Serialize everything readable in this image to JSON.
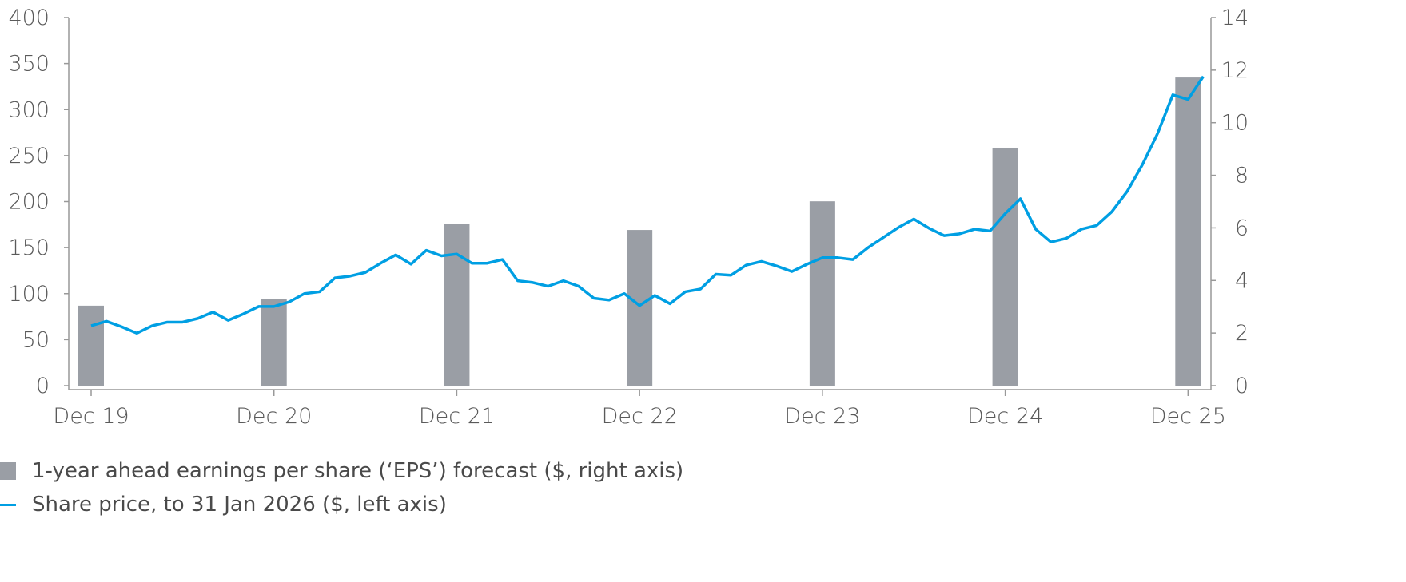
{
  "chart_data": {
    "type": "bar+line",
    "colors": {
      "bars": "#9a9ea5",
      "line": "#009fe3"
    },
    "left_axis": {
      "ylim": [
        0,
        400
      ],
      "ticks": [
        0,
        50,
        100,
        150,
        200,
        250,
        300,
        350,
        400
      ]
    },
    "right_axis": {
      "ylim": [
        0,
        14
      ],
      "ticks": [
        0,
        2,
        4,
        6,
        8,
        10,
        12,
        14
      ]
    },
    "x_tick_labels": [
      "Dec 19",
      "Dec 20",
      "Dec 21",
      "Dec 22",
      "Dec 23",
      "Dec 24",
      "Dec 25"
    ],
    "grid": false,
    "legend_placement": "bottom-left",
    "series": [
      {
        "name": "1-year ahead earnings per share (‘EPS’) forecast ($, right axis)",
        "type": "bar",
        "axis": "right",
        "categories": [
          "Dec 19",
          "Dec 20",
          "Dec 21",
          "Dec 22",
          "Dec 23",
          "Dec 24",
          "Dec 25"
        ],
        "values": [
          3.04,
          3.31,
          6.16,
          5.92,
          7.01,
          9.05,
          11.72
        ]
      },
      {
        "name": "Share price, to 31 Jan 2026 ($, left axis)",
        "type": "line",
        "axis": "left",
        "x": [
          "2019-12",
          "2020-01",
          "2020-02",
          "2020-03",
          "2020-04",
          "2020-05",
          "2020-06",
          "2020-07",
          "2020-08",
          "2020-09",
          "2020-10",
          "2020-11",
          "2020-12",
          "2021-01",
          "2021-02",
          "2021-03",
          "2021-04",
          "2021-05",
          "2021-06",
          "2021-07",
          "2021-08",
          "2021-09",
          "2021-10",
          "2021-11",
          "2021-12",
          "2022-01",
          "2022-02",
          "2022-03",
          "2022-04",
          "2022-05",
          "2022-06",
          "2022-07",
          "2022-08",
          "2022-09",
          "2022-10",
          "2022-11",
          "2022-12",
          "2023-01",
          "2023-02",
          "2023-03",
          "2023-04",
          "2023-05",
          "2023-06",
          "2023-07",
          "2023-08",
          "2023-09",
          "2023-10",
          "2023-11",
          "2023-12",
          "2024-01",
          "2024-02",
          "2024-03",
          "2024-04",
          "2024-05",
          "2024-06",
          "2024-07",
          "2024-08",
          "2024-09",
          "2024-10",
          "2024-11",
          "2024-12",
          "2025-01",
          "2025-02",
          "2025-03",
          "2025-04",
          "2025-05",
          "2025-06",
          "2025-07",
          "2025-08",
          "2025-09",
          "2025-10",
          "2025-11",
          "2025-12",
          "2026-01"
        ],
        "values": [
          65,
          70,
          64,
          57,
          65,
          69,
          69,
          73,
          80,
          71,
          78,
          86,
          86,
          91,
          100,
          102,
          117,
          119,
          123,
          133,
          142,
          132,
          147,
          141,
          143,
          133,
          133,
          137,
          114,
          112,
          108,
          114,
          108,
          95,
          93,
          100,
          87,
          98,
          89,
          102,
          105,
          121,
          120,
          131,
          135,
          130,
          124,
          132,
          139,
          139,
          137,
          150,
          161,
          172,
          181,
          171,
          163,
          165,
          170,
          168,
          187,
          203,
          170,
          156,
          160,
          170,
          174,
          189,
          211,
          240,
          274,
          316,
          311,
          336
        ]
      }
    ]
  }
}
